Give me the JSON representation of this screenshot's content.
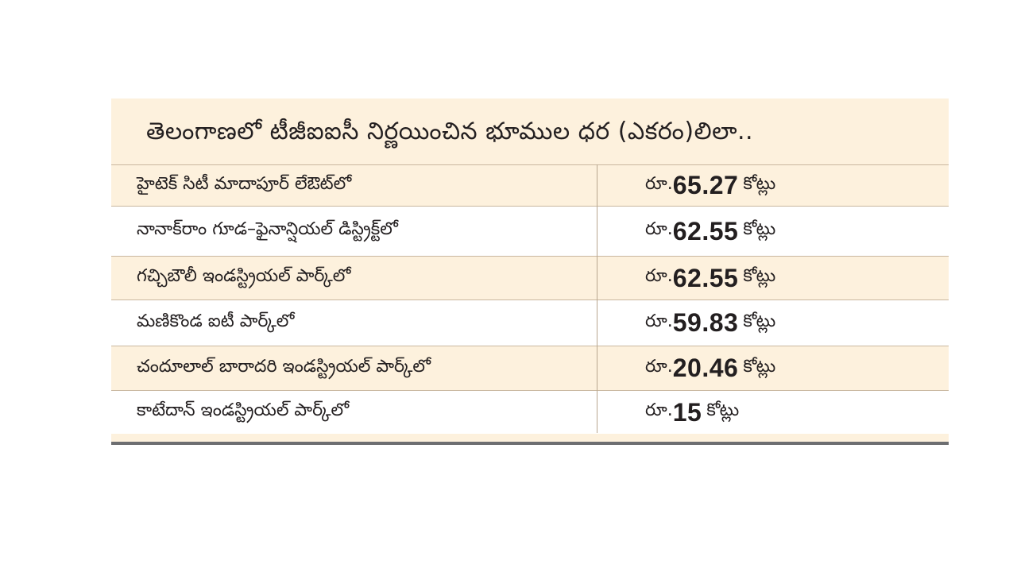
{
  "title": "తెలంగాణలో టీజీఐఐసీ నిర్ణయించిన భూముల ధర (ఎకరం)లిలా..",
  "rows": [
    {
      "place": "హైటెక్ సిటీ మాదాపూర్ లేఔట్‌లో",
      "prefix": "రూ.",
      "amount": "65.27",
      "unit": "కోట్లు"
    },
    {
      "place": "నానాక్‌రాం గూడ–ఫైనాన్షియల్ డిస్ట్రిక్ట్‌లో",
      "prefix": "రూ.",
      "amount": "62.55",
      "unit": "కోట్లు"
    },
    {
      "place": "గచ్చిబౌలీ ఇండస్ట్రియల్ పార్క్‌లో",
      "prefix": "రూ.",
      "amount": "62.55",
      "unit": "కోట్లు"
    },
    {
      "place": "మణికొండ ఐటీ పార్క్‌లో",
      "prefix": "రూ.",
      "amount": "59.83",
      "unit": "కోట్లు"
    },
    {
      "place": "చందూలాల్ బారాదరి ఇండస్ట్రియల్ పార్క్‌లో",
      "prefix": "రూ.",
      "amount": "20.46",
      "unit": "కోట్లు"
    },
    {
      "place": "కాటేదాన్ ఇండస్ట్రియల్ పార్క్‌లో",
      "prefix": "రూ.",
      "amount": "15",
      "unit": "కోట్లు"
    }
  ],
  "colors": {
    "band": "#fdf1dd",
    "alt_row": "#ffffff",
    "rule": "#6d6e71",
    "text": "#231f20"
  }
}
